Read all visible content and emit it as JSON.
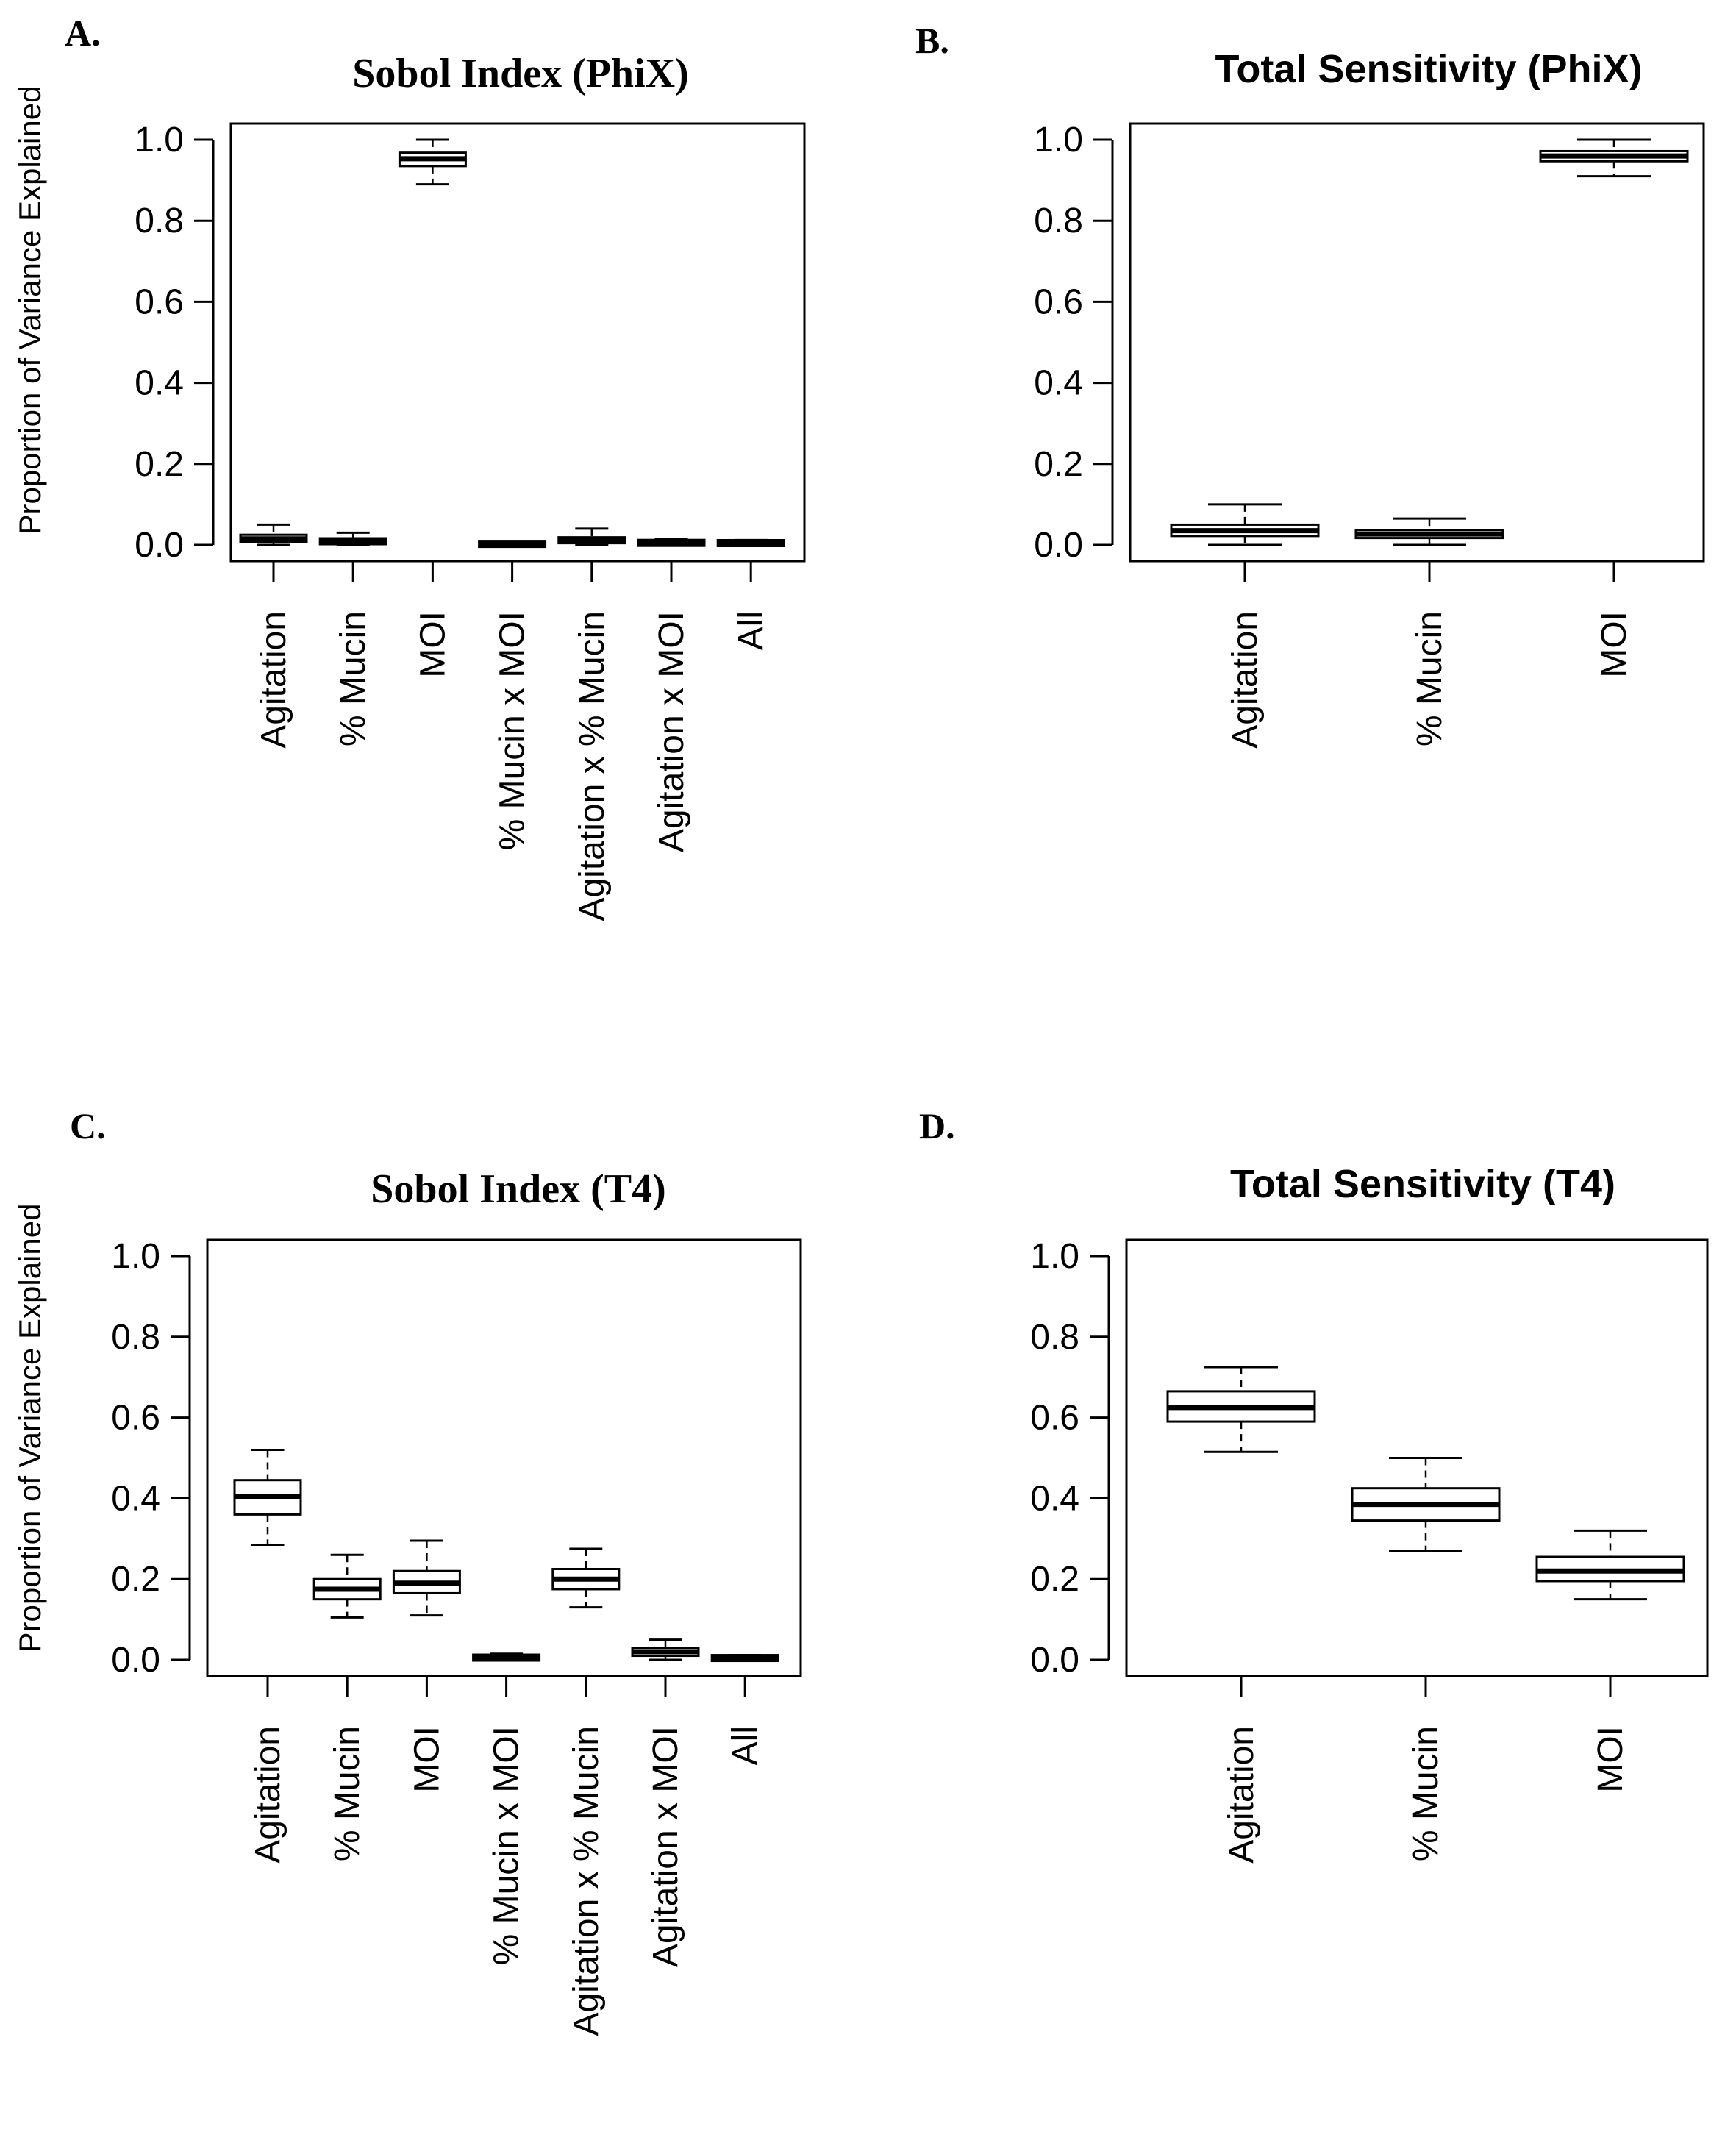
{
  "figure": {
    "ylabel": "Proportion of Variance Explained"
  },
  "chart_data": [
    {
      "type": "boxplot",
      "panel_label": "A.",
      "title": "Sobol Index (PhiX)",
      "title_style": "serif",
      "ylabel": "Proportion of Variance Explained",
      "ylim": [
        -0.04,
        1.04
      ],
      "yticks": [
        0.0,
        0.2,
        0.4,
        0.6,
        0.8,
        1.0
      ],
      "ytick_labels": [
        "0.0",
        "0.2",
        "0.4",
        "0.6",
        "0.8",
        "1.0"
      ],
      "categories": [
        "Agitation",
        "% Mucin",
        "MOI",
        "% Mucin x MOI",
        "Agitation x % Mucin",
        "Agitation x MOI",
        "All"
      ],
      "boxes": [
        {
          "min": 0.0,
          "q1": 0.008,
          "median": 0.015,
          "q3": 0.025,
          "max": 0.05
        },
        {
          "min": 0.0,
          "q1": 0.004,
          "median": 0.008,
          "q3": 0.014,
          "max": 0.03
        },
        {
          "min": 0.89,
          "q1": 0.935,
          "median": 0.953,
          "q3": 0.968,
          "max": 1.0
        },
        {
          "min": 0.0,
          "q1": 0.001,
          "median": 0.002,
          "q3": 0.004,
          "max": 0.008
        },
        {
          "min": 0.0,
          "q1": 0.005,
          "median": 0.01,
          "q3": 0.018,
          "max": 0.04
        },
        {
          "min": 0.0,
          "q1": 0.002,
          "median": 0.005,
          "q3": 0.008,
          "max": 0.015
        },
        {
          "min": 0.0,
          "q1": 0.002,
          "median": 0.004,
          "q3": 0.007,
          "max": 0.012
        }
      ]
    },
    {
      "type": "boxplot",
      "panel_label": "B.",
      "title": "Total Sensitivity (PhiX)",
      "title_style": "sans",
      "ylabel": "",
      "ylim": [
        -0.04,
        1.04
      ],
      "yticks": [
        0.0,
        0.2,
        0.4,
        0.6,
        0.8,
        1.0
      ],
      "ytick_labels": [
        "0.0",
        "0.2",
        "0.4",
        "0.6",
        "0.8",
        "1.0"
      ],
      "categories": [
        "Agitation",
        "% Mucin",
        "MOI"
      ],
      "boxes": [
        {
          "min": 0.0,
          "q1": 0.022,
          "median": 0.035,
          "q3": 0.05,
          "max": 0.1
        },
        {
          "min": 0.0,
          "q1": 0.017,
          "median": 0.027,
          "q3": 0.037,
          "max": 0.065
        },
        {
          "min": 0.91,
          "q1": 0.947,
          "median": 0.96,
          "q3": 0.972,
          "max": 1.0
        }
      ]
    },
    {
      "type": "boxplot",
      "panel_label": "C.",
      "title": "Sobol Index (T4)",
      "title_style": "serif",
      "ylabel": "Proportion of Variance Explained",
      "ylim": [
        -0.04,
        1.04
      ],
      "yticks": [
        0.0,
        0.2,
        0.4,
        0.6,
        0.8,
        1.0
      ],
      "ytick_labels": [
        "0.0",
        "0.2",
        "0.4",
        "0.6",
        "0.8",
        "1.0"
      ],
      "categories": [
        "Agitation",
        "% Mucin",
        "MOI",
        "% Mucin x MOI",
        "Agitation x % Mucin",
        "Agitation x MOI",
        "All"
      ],
      "boxes": [
        {
          "min": 0.285,
          "q1": 0.36,
          "median": 0.405,
          "q3": 0.445,
          "max": 0.52
        },
        {
          "min": 0.105,
          "q1": 0.15,
          "median": 0.175,
          "q3": 0.2,
          "max": 0.26
        },
        {
          "min": 0.11,
          "q1": 0.165,
          "median": 0.19,
          "q3": 0.22,
          "max": 0.295
        },
        {
          "min": 0.0,
          "q1": 0.002,
          "median": 0.005,
          "q3": 0.009,
          "max": 0.015
        },
        {
          "min": 0.13,
          "q1": 0.175,
          "median": 0.2,
          "q3": 0.225,
          "max": 0.275
        },
        {
          "min": 0.0,
          "q1": 0.01,
          "median": 0.02,
          "q3": 0.03,
          "max": 0.05
        },
        {
          "min": 0.0,
          "q1": 0.002,
          "median": 0.004,
          "q3": 0.007,
          "max": 0.012
        }
      ]
    },
    {
      "type": "boxplot",
      "panel_label": "D.",
      "title": "Total Sensitivity (T4)",
      "title_style": "sans",
      "ylabel": "",
      "ylim": [
        -0.04,
        1.04
      ],
      "yticks": [
        0.0,
        0.2,
        0.4,
        0.6,
        0.8,
        1.0
      ],
      "ytick_labels": [
        "0.0",
        "0.2",
        "0.4",
        "0.6",
        "0.8",
        "1.0"
      ],
      "categories": [
        "Agitation",
        "% Mucin",
        "MOI"
      ],
      "boxes": [
        {
          "min": 0.515,
          "q1": 0.59,
          "median": 0.625,
          "q3": 0.665,
          "max": 0.725
        },
        {
          "min": 0.27,
          "q1": 0.345,
          "median": 0.385,
          "q3": 0.425,
          "max": 0.5
        },
        {
          "min": 0.15,
          "q1": 0.195,
          "median": 0.22,
          "q3": 0.255,
          "max": 0.32
        }
      ]
    }
  ]
}
